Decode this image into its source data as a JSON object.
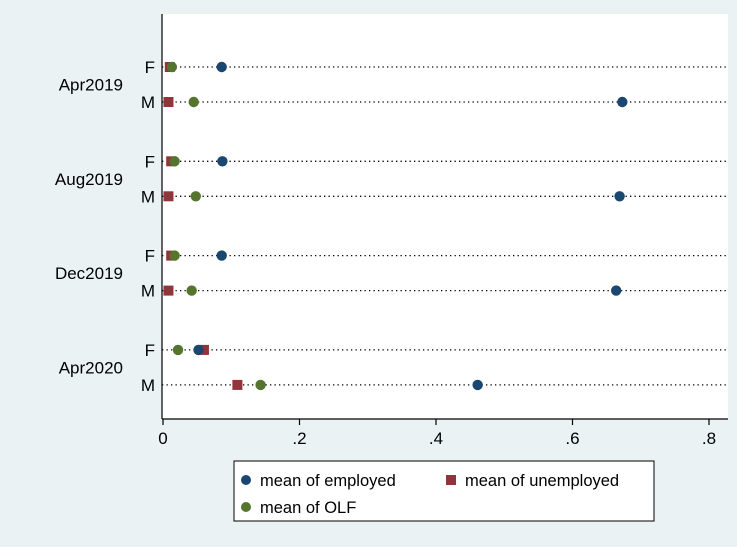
{
  "chart_data": {
    "type": "dot",
    "title": "",
    "xlabel": "",
    "ylabel": "",
    "xlim": [
      0,
      0.82
    ],
    "x_ticks": [
      0,
      0.2,
      0.4,
      0.6,
      0.8
    ],
    "x_tick_labels": [
      "0",
      ".2",
      ".4",
      ".6",
      ".8"
    ],
    "grid": "dotted guide line per row",
    "legend_position": "bottom",
    "groups": [
      {
        "label": "Apr2019",
        "rows": [
          {
            "label": "F",
            "employed": 0.086,
            "unemployed": 0.01,
            "olf": 0.013
          },
          {
            "label": "M",
            "employed": 0.673,
            "unemployed": 0.008,
            "olf": 0.045
          }
        ]
      },
      {
        "label": "Aug2019",
        "rows": [
          {
            "label": "F",
            "employed": 0.087,
            "unemployed": 0.012,
            "olf": 0.017
          },
          {
            "label": "M",
            "employed": 0.669,
            "unemployed": 0.008,
            "olf": 0.048
          }
        ]
      },
      {
        "label": "Dec2019",
        "rows": [
          {
            "label": "F",
            "employed": 0.086,
            "unemployed": 0.012,
            "olf": 0.017
          },
          {
            "label": "M",
            "employed": 0.664,
            "unemployed": 0.008,
            "olf": 0.042
          }
        ]
      },
      {
        "label": "Apr2020",
        "rows": [
          {
            "label": "F",
            "employed": 0.052,
            "unemployed": 0.06,
            "olf": 0.022
          },
          {
            "label": "M",
            "employed": 0.461,
            "unemployed": 0.109,
            "olf": 0.143
          }
        ]
      }
    ],
    "series": [
      {
        "key": "employed",
        "name": "mean of employed",
        "color": "#1a476f",
        "marker": "circle"
      },
      {
        "key": "unemployed",
        "name": "mean of unemployed",
        "color": "#90353b",
        "marker": "square"
      },
      {
        "key": "olf",
        "name": "mean of OLF",
        "color": "#55752f",
        "marker": "circle"
      }
    ],
    "draw_order": [
      "unemployed",
      "olf",
      "employed"
    ]
  }
}
